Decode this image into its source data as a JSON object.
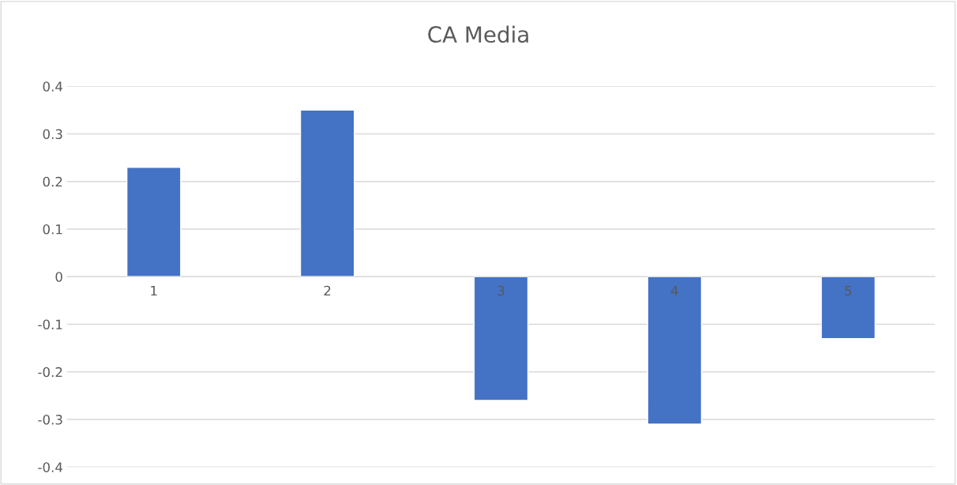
{
  "chart_data": {
    "type": "bar",
    "title": "CA Media",
    "categories": [
      "1",
      "2",
      "3",
      "4",
      "5"
    ],
    "values": [
      0.23,
      0.35,
      -0.26,
      -0.31,
      -0.13
    ],
    "color": "#4472c4",
    "ylim": [
      -0.4,
      0.4
    ],
    "yticks": [
      -0.4,
      -0.3,
      -0.2,
      -0.1,
      0,
      0.1,
      0.2,
      0.3,
      0.4
    ],
    "grid": "y",
    "legend": false
  }
}
